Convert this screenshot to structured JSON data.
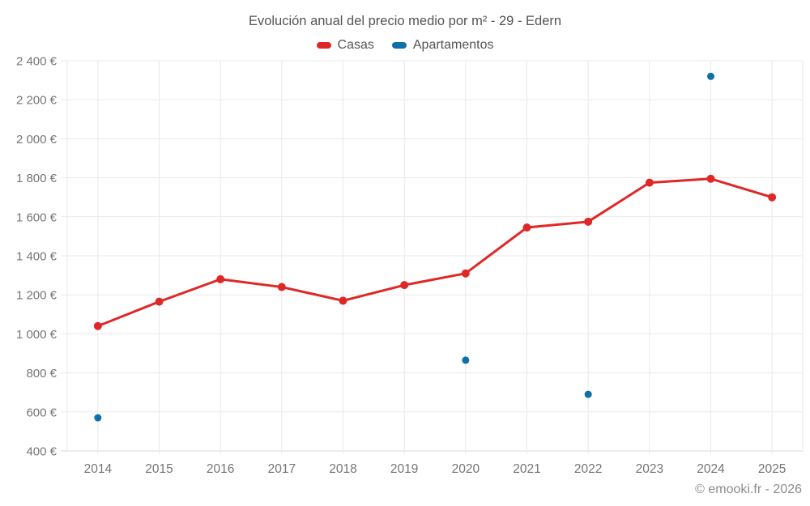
{
  "chart_data": {
    "type": "line",
    "title": "Evolución anual del precio medio por m² - 29 - Edern",
    "x": [
      2014,
      2015,
      2016,
      2017,
      2018,
      2019,
      2020,
      2021,
      2022,
      2023,
      2024,
      2025
    ],
    "series": [
      {
        "name": "Casas",
        "type": "line",
        "color": "#e02727",
        "marker": "circle",
        "values": [
          1040,
          1165,
          1280,
          1240,
          1170,
          1250,
          1310,
          1545,
          1575,
          1775,
          1795,
          1700
        ]
      },
      {
        "name": "Apartamentos",
        "type": "scatter",
        "color": "#0f6fa8",
        "marker": "circle",
        "values": [
          570,
          null,
          null,
          null,
          null,
          null,
          865,
          null,
          690,
          null,
          2320,
          null
        ]
      }
    ],
    "xlabel": "",
    "ylabel": "",
    "ylim": [
      400,
      2400
    ],
    "ytick_step": 200,
    "ytick_suffix": " €",
    "grid": true,
    "legend_position": "top"
  },
  "footer": {
    "text": "© emooki.fr - 2026"
  },
  "colors": {
    "background": "#ffffff",
    "grid": "#e9e9e9",
    "grid_bottom": "#d9d9d9",
    "tick_text": "#757575",
    "title_text": "#545454",
    "footer_text": "#8c8c8c"
  }
}
